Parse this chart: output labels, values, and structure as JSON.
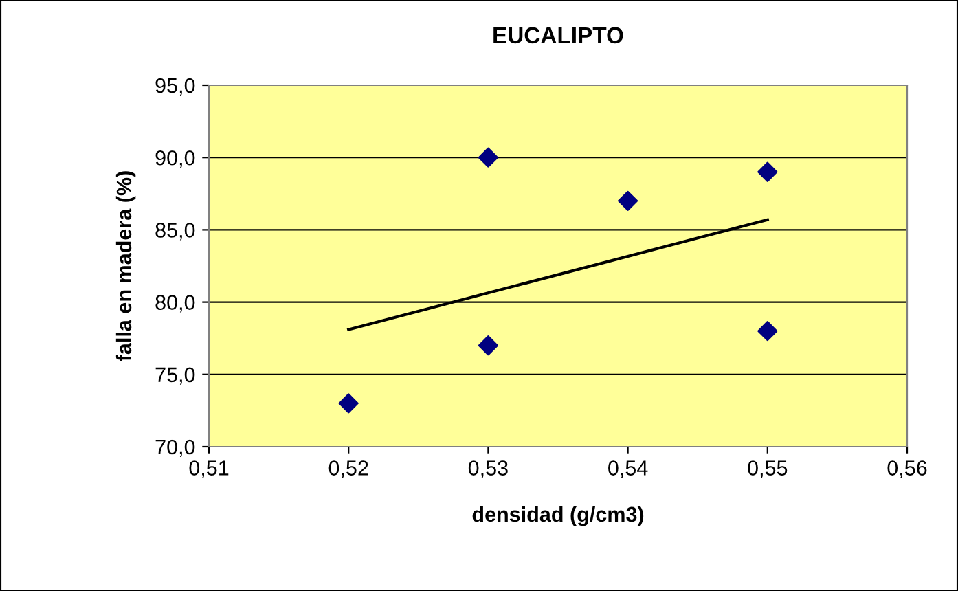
{
  "chart_data": {
    "type": "scatter",
    "title": "EUCALIPTO",
    "xlabel": "densidad (g/cm3)",
    "ylabel": "falla en madera (%)",
    "series": [
      {
        "color": "#000080",
        "marker": "diamond",
        "x": [
          0.52,
          0.53,
          0.53,
          0.54,
          0.55,
          0.55
        ],
        "values": [
          73,
          90,
          77,
          87,
          89,
          78
        ]
      },
      {
        "type": "line",
        "color": "#000000",
        "marker": "none",
        "line_style": "solid",
        "x": [
          0.52,
          0.55
        ],
        "values": [
          78.1,
          85.7
        ]
      }
    ],
    "xlim": [
      0.51,
      0.56
    ],
    "ylim": [
      70,
      95
    ],
    "xticks": [
      {
        "value": 0.51,
        "label": "0,51"
      },
      {
        "value": 0.52,
        "label": "0,52"
      },
      {
        "value": 0.53,
        "label": "0,53"
      },
      {
        "value": 0.54,
        "label": "0,54"
      },
      {
        "value": 0.55,
        "label": "0,55"
      },
      {
        "value": 0.56,
        "label": "0,56"
      }
    ],
    "yticks": [
      {
        "value": 70,
        "label": "70,0"
      },
      {
        "value": 75,
        "label": "75,0"
      },
      {
        "value": 80,
        "label": "80,0"
      },
      {
        "value": 85,
        "label": "85,0"
      },
      {
        "value": 90,
        "label": "90,0"
      },
      {
        "value": 95,
        "label": "95,0"
      }
    ],
    "grid": "y"
  }
}
